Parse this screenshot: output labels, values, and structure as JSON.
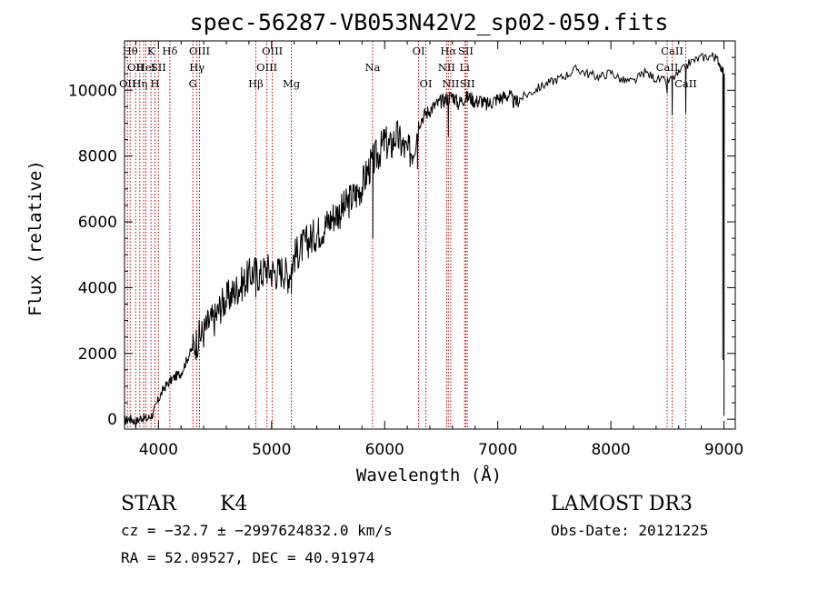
{
  "chart_data": {
    "type": "line",
    "title": "spec-56287-VB053N42V2_sp02-059.fits",
    "xlabel": "Wavelength (Å)",
    "ylabel": "Flux (relative)",
    "xlim": [
      3700,
      9100
    ],
    "ylim": [
      -300,
      11500
    ],
    "x_ticks": [
      4000,
      5000,
      6000,
      7000,
      8000,
      9000
    ],
    "y_ticks": [
      0,
      2000,
      4000,
      6000,
      8000,
      10000
    ],
    "grid": false,
    "series": [
      {
        "color": "#000000",
        "points": [
          [
            3700,
            -50
          ],
          [
            3750,
            20
          ],
          [
            3800,
            -80
          ],
          [
            3850,
            60
          ],
          [
            3900,
            10
          ],
          [
            3950,
            150
          ],
          [
            4000,
            600
          ],
          [
            4050,
            950
          ],
          [
            4100,
            1150
          ],
          [
            4150,
            1300
          ],
          [
            4200,
            1400
          ],
          [
            4250,
            1800
          ],
          [
            4300,
            2150
          ],
          [
            4350,
            2450
          ],
          [
            4400,
            2650
          ],
          [
            4450,
            2950
          ],
          [
            4500,
            3050
          ],
          [
            4550,
            3450
          ],
          [
            4600,
            3650
          ],
          [
            4650,
            3800
          ],
          [
            4700,
            4000
          ],
          [
            4750,
            4150
          ],
          [
            4800,
            4350
          ],
          [
            4850,
            4500
          ],
          [
            4900,
            4350
          ],
          [
            4950,
            4600
          ],
          [
            5000,
            4500
          ],
          [
            5050,
            4450
          ],
          [
            5100,
            4550
          ],
          [
            5150,
            4350
          ],
          [
            5200,
            4950
          ],
          [
            5250,
            5150
          ],
          [
            5300,
            5350
          ],
          [
            5350,
            5500
          ],
          [
            5400,
            5650
          ],
          [
            5450,
            5800
          ],
          [
            5500,
            6000
          ],
          [
            5550,
            6200
          ],
          [
            5600,
            6300
          ],
          [
            5650,
            6450
          ],
          [
            5700,
            6700
          ],
          [
            5750,
            6850
          ],
          [
            5800,
            7100
          ],
          [
            5850,
            7550
          ],
          [
            5900,
            7850
          ],
          [
            5950,
            8100
          ],
          [
            6000,
            8450
          ],
          [
            6050,
            8250
          ],
          [
            6100,
            8650
          ],
          [
            6150,
            8350
          ],
          [
            6200,
            8100
          ],
          [
            6250,
            8200
          ],
          [
            6300,
            9000
          ],
          [
            6350,
            9250
          ],
          [
            6400,
            9400
          ],
          [
            6450,
            9550
          ],
          [
            6500,
            9650
          ],
          [
            6550,
            9750
          ],
          [
            6600,
            9850
          ],
          [
            6650,
            9600
          ],
          [
            6700,
            9750
          ],
          [
            6750,
            9800
          ],
          [
            6800,
            9650
          ],
          [
            6850,
            9700
          ],
          [
            6900,
            9550
          ],
          [
            6950,
            9650
          ],
          [
            7000,
            9750
          ],
          [
            7050,
            9800
          ],
          [
            7100,
            9850
          ],
          [
            7150,
            9600
          ],
          [
            7200,
            9750
          ],
          [
            7300,
            9950
          ],
          [
            7400,
            10150
          ],
          [
            7500,
            10300
          ],
          [
            7600,
            10450
          ],
          [
            7700,
            10650
          ],
          [
            7800,
            10500
          ],
          [
            7900,
            10400
          ],
          [
            8000,
            10550
          ],
          [
            8100,
            10300
          ],
          [
            8200,
            10250
          ],
          [
            8300,
            10550
          ],
          [
            8400,
            10350
          ],
          [
            8500,
            10250
          ],
          [
            8600,
            10500
          ],
          [
            8700,
            10850
          ],
          [
            8800,
            11000
          ],
          [
            8900,
            11050
          ],
          [
            8950,
            10900
          ],
          [
            9000,
            10500
          ]
        ],
        "absorption_dips": [
          [
            4300,
            2300
          ],
          [
            4860,
            3700
          ],
          [
            5175,
            3800
          ],
          [
            5895,
            5500
          ],
          [
            6290,
            7600
          ],
          [
            6563,
            8600
          ],
          [
            8498,
            9900
          ],
          [
            8542,
            9250
          ],
          [
            8662,
            9300
          ],
          [
            8990,
            1800
          ],
          [
            9000,
            100
          ]
        ]
      }
    ],
    "spectral_lines": [
      {
        "wavelength": 3726,
        "label": "OII",
        "row": 2
      },
      {
        "wavelength": 3750,
        "label": "Hθ",
        "row": 0
      },
      {
        "wavelength": 3798,
        "label": "OII",
        "row": 1
      },
      {
        "wavelength": 3835,
        "label": "Hη",
        "row": 2
      },
      {
        "wavelength": 3869,
        "label": "",
        "row": 1
      },
      {
        "wavelength": 3889,
        "label": "HeI",
        "row": 1
      },
      {
        "wavelength": 3934,
        "label": "K",
        "row": 0
      },
      {
        "wavelength": 3969,
        "label": "H",
        "row": 2
      },
      {
        "wavelength": 4000,
        "label": "SII",
        "row": 1
      },
      {
        "wavelength": 4101,
        "label": "Hδ",
        "row": 0
      },
      {
        "wavelength": 4304,
        "label": "G",
        "row": 2
      },
      {
        "wavelength": 4340,
        "label": "Hγ",
        "row": 1
      },
      {
        "wavelength": 4363,
        "label": "OIII",
        "row": 0
      },
      {
        "wavelength": 4861,
        "label": "Hβ",
        "row": 2
      },
      {
        "wavelength": 4959,
        "label": "OIII",
        "row": 1
      },
      {
        "wavelength": 5007,
        "label": "OIII",
        "row": 0
      },
      {
        "wavelength": 5175,
        "label": "Mg",
        "row": 2
      },
      {
        "wavelength": 5893,
        "label": "Na",
        "row": 1
      },
      {
        "wavelength": 6300,
        "label": "OI",
        "row": 0
      },
      {
        "wavelength": 6364,
        "label": "OI",
        "row": 2
      },
      {
        "wavelength": 6548,
        "label": "NII",
        "row": 1
      },
      {
        "wavelength": 6563,
        "label": "Hα",
        "row": 0
      },
      {
        "wavelength": 6584,
        "label": "NII",
        "row": 2
      },
      {
        "wavelength": 6707,
        "label": "Li",
        "row": 1
      },
      {
        "wavelength": 6717,
        "label": "SII",
        "row": 0
      },
      {
        "wavelength": 6731,
        "label": "SII",
        "row": 2
      },
      {
        "wavelength": 8498,
        "label": "CaII",
        "row": 1
      },
      {
        "wavelength": 8542,
        "label": "CaII",
        "row": 0
      },
      {
        "wavelength": 8662,
        "label": "CaII",
        "row": 2
      }
    ],
    "line_marker_color": "#c00000"
  },
  "info": {
    "class_label": "STAR",
    "subclass_label": "K4",
    "survey": "LAMOST DR3",
    "redshift": "cz = −32.7 ± −2997624832.0 km/s",
    "obs_date": "Obs-Date: 20121225",
    "coords": "RA =  52.09527, DEC =  40.91974"
  }
}
